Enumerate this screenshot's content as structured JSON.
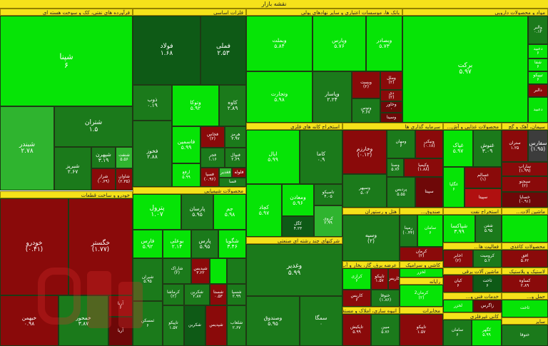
{
  "title": "نقشه بازار",
  "colors": {
    "header": "#f5e21a",
    "bright_green": "#06e406",
    "green": "#2fb42f",
    "dark_green": "#1b7a1b",
    "dark_red": "#8a0a0a"
  },
  "sectors": [
    {
      "key": "faravarde",
      "label": "فرآورده های نفتی، کک و سوخت هسته ای"
    },
    {
      "key": "felezat",
      "label": "فلزات اساسی"
    },
    {
      "key": "bank",
      "label": "بانک ها، موسسات اعتباری و سایر نهادهای پولی"
    },
    {
      "key": "daru",
      "label": "مواد و محصولات دارویی"
    },
    {
      "key": "madan",
      "label": "استخراج کانه های فلزی"
    },
    {
      "key": "sarmaye",
      "label": "سرمایه گذاری ها"
    },
    {
      "key": "ghazaei",
      "label": "محصولات غذایی و آش..."
    },
    {
      "key": "siman",
      "label": "سیمان، آهک و گچ"
    },
    {
      "key": "khodro",
      "label": "خودرو و ساخت قطعات"
    },
    {
      "key": "shimiaei",
      "label": "محصولات شیمیایی"
    },
    {
      "key": "chandreshte",
      "label": "شرکتهای چند رشته ای صنعتی"
    },
    {
      "key": "hotel",
      "label": "هتل و رستوران"
    },
    {
      "key": "sandogh",
      "label": "صندوق..."
    },
    {
      "key": "naft",
      "label": "استخراج نفت"
    },
    {
      "key": "mashin",
      "label": "ماشین آلات..."
    },
    {
      "key": "kashi",
      "label": "کاشی و سرامیک"
    },
    {
      "key": "fani",
      "label": "فعالیت ها..."
    },
    {
      "key": "kaghaz",
      "label": "محصولات کاغذی"
    },
    {
      "key": "barq",
      "label": "ماشین آلات برقی"
    },
    {
      "key": "lastik",
      "label": "لاستیک و پلاستیک"
    },
    {
      "key": "rayane",
      "label": "رایانه"
    },
    {
      "key": "melk",
      "انبوه سازی": "",
      "label": "انبوه سازی، املاک و مستغلات"
    },
    {
      "key": "fani2",
      "label": "خدمات فنی و..."
    },
    {
      "key": "gaz",
      "label": "عرضه برق، گاز، بخار و آب"
    },
    {
      "key": "mokhaberat",
      "label": "مخابرات"
    },
    {
      "key": "hamlonaql",
      "label": "حمل و..."
    },
    {
      "key": "kani",
      "label": "کانی غیرفلزی"
    },
    {
      "key": "chandreshte2",
      "label": "خرده..."
    },
    {
      "key": "misc",
      "label": "سایر"
    }
  ],
  "tiles": [
    {
      "name": "شپنا",
      "change": "۶"
    },
    {
      "name": "شبندر",
      "change": "۲.۷۸"
    },
    {
      "name": "شتران",
      "change": "۱.۵"
    },
    {
      "name": "شبریز",
      "change": "۲.۶۷"
    },
    {
      "name": "شپهرن",
      "change": "۳.۱۹"
    },
    {
      "name": "شنفت",
      "change": "۵.۵۶"
    },
    {
      "name": "شراز",
      "change": "(۰.۶۹)"
    },
    {
      "name": "شاوان",
      "change": "(۲.۳۵)"
    },
    {
      "name": "فولاد",
      "change": "۱.۶۸"
    },
    {
      "name": "فملی",
      "change": "۲.۵۳"
    },
    {
      "name": "ذوب",
      "change": "۰.۱۹"
    },
    {
      "name": "وتوکا",
      "change": "۵.۹۲"
    },
    {
      "name": "کاوه",
      "change": "۲.۸۹"
    },
    {
      "name": "فخوز",
      "change": "۲.۸۸"
    },
    {
      "name": "فاسمین",
      "change": "۵.۹۹"
    },
    {
      "name": "فخاس",
      "change": "(۲)"
    },
    {
      "name": "هرمز",
      "change": "۳.۹۷"
    },
    {
      "name": "ارفع",
      "change": "۵.۹۹"
    },
    {
      "name": "فجر",
      "change": "۱.۱۶"
    },
    {
      "name": "فنوال",
      "change": "۲.۶۹"
    },
    {
      "name": "فسپا",
      "change": "(۰.۹۶)"
    },
    {
      "name": "فغدیر",
      "change": "۵.۳۹"
    },
    {
      "name": "فلوله",
      "change": "(۲.۰۸)"
    },
    {
      "name": "فسا",
      "change": "۲.۰۵"
    },
    {
      "name": "وبملت",
      "change": "۵.۸۴"
    },
    {
      "name": "وپارس",
      "change": "۵.۷۶"
    },
    {
      "name": "وبصادر",
      "change": "۵.۷۳"
    },
    {
      "name": "وتجارت",
      "change": "۵.۹۸"
    },
    {
      "name": "وپاسار",
      "change": "۲.۲۴"
    },
    {
      "name": "وبست",
      "change": "(۲)"
    },
    {
      "name": "وملل",
      "change": "(۲)"
    },
    {
      "name": "وتوس",
      "change": "۳.۶۷"
    },
    {
      "name": "دی",
      "change": "(۲)"
    },
    {
      "name": "وخاور",
      "change": "۰"
    },
    {
      "name": "وسینا",
      "change": "۰"
    },
    {
      "name": "برکت",
      "change": "۵.۹۷"
    },
    {
      "name": "والبر",
      "change": "۰.۱۲"
    },
    {
      "name": "دعبید",
      "change": "۶"
    },
    {
      "name": "شفا",
      "change": "۶"
    },
    {
      "name": "تیپیکو",
      "change": "۶"
    },
    {
      "name": "دالبر",
      "change": "۶"
    },
    {
      "name": "فارس",
      "change": "۵.۹۲"
    },
    {
      "name": "ایال",
      "change": "۵.۹۹"
    },
    {
      "name": "کاما",
      "change": "۰.۹"
    },
    {
      "name": "کچاد",
      "change": "۵.۹۷"
    },
    {
      "name": "ومعادن",
      "change": "۵.۹۶"
    },
    {
      "name": "تاصیکو",
      "change": "۴.۰۵"
    },
    {
      "name": "کگل",
      "change": "۴.۲۳"
    },
    {
      "name": "کروی",
      "change": "۲.۹۹"
    },
    {
      "name": "وخارزم",
      "change": "(۰.۱۲)"
    },
    {
      "name": "ومهان",
      "change": "۶"
    },
    {
      "name": "ونیکی",
      "change": "(۰.۱۸)"
    },
    {
      "name": "وکیمیا",
      "change": "(۱.۸۸)"
    },
    {
      "name": "وصنا",
      "change": "۵.۷۶"
    },
    {
      "name": "وسپهر",
      "change": "۵.۰۲"
    },
    {
      "name": "پردیس",
      "change": "۵.۵۵"
    },
    {
      "name": "غپاک",
      "change": "۵.۹۷"
    },
    {
      "name": "غنوش",
      "change": "۳.۰۹"
    },
    {
      "name": "غگلپا",
      "change": "۶"
    },
    {
      "name": "غسالم",
      "change": "(۱)"
    },
    {
      "name": "سپیتا",
      "change": "۶"
    },
    {
      "name": "سفارس",
      "change": "(۱.۹۵)"
    },
    {
      "name": "ستران",
      "change": "۱.۲۵"
    },
    {
      "name": "ساراب",
      "change": "(۱.۹۹)"
    },
    {
      "name": "سبجنو",
      "change": "(۲)"
    },
    {
      "name": "خساپا",
      "change": "(۰.۹۱)"
    },
    {
      "name": "خودرو",
      "change": "(۰.۴۱)"
    },
    {
      "name": "خگستر",
      "change": "(۱.۷۷)"
    },
    {
      "name": "خبهمن",
      "change": "۰.۹۸"
    },
    {
      "name": "خمحور",
      "change": "۳.۸۷"
    },
    {
      "name": "آریا",
      "change": "۶"
    },
    {
      "name": "پترول",
      "change": "۱.۰۷"
    },
    {
      "name": "پارسان",
      "change": "۵.۹۵"
    },
    {
      "name": "جم",
      "change": "۵.۹۸"
    },
    {
      "name": "بوعلی",
      "change": "۲.۱۴"
    },
    {
      "name": "پارس",
      "change": "۵.۹۵"
    },
    {
      "name": "شگویا",
      "change": "۳.۴۶"
    },
    {
      "name": "شاراک",
      "change": "(۲)"
    },
    {
      "name": "شپدیس",
      "change": "۳.۲۲"
    },
    {
      "name": "شیران",
      "change": "۵.۹۵"
    },
    {
      "name": "کرماشا",
      "change": "(۲)"
    },
    {
      "name": "شکربن",
      "change": "۲.۸۷"
    },
    {
      "name": "شسپا",
      "change": "۲.۹۹"
    },
    {
      "name": "شلعاب",
      "change": "۲.۶۷"
    },
    {
      "name": "شستا",
      "change": "۰.۵۳"
    },
    {
      "name": "وغدیر",
      "change": "۵.۹۹"
    },
    {
      "name": "وصندوق",
      "change": "۵.۹۵"
    },
    {
      "name": "سمگا",
      "change": "۰"
    },
    {
      "name": "وسپه",
      "change": "(۲)"
    },
    {
      "name": "کرمان",
      "change": "(۲)"
    },
    {
      "name": "تاپکیش",
      "change": "۵.۹۹"
    },
    {
      "name": "رمپنا",
      "change": "(۰.۴۴)"
    },
    {
      "name": "تاپیکو",
      "change": "۱.۵۷"
    },
    {
      "name": "مبین",
      "change": "۵.۷۶"
    },
    {
      "name": "کرازی",
      "change": "۶"
    },
    {
      "name": "کرمان2",
      "change": "(۲)"
    },
    {
      "name": "کاریس",
      "change": "۶"
    },
    {
      "name": "ختوقا",
      "change": "(۱.۸۶)"
    },
    {
      "name": "اخابر",
      "change": "(۲)"
    },
    {
      "name": "افق",
      "change": "۵.۶۲"
    },
    {
      "name": "کیان",
      "change": "۶"
    },
    {
      "name": "سامان",
      "change": "۶"
    },
    {
      "name": "ثمسکن",
      "change": "۶"
    },
    {
      "name": "کرومیت",
      "change": "۵.۲"
    },
    {
      "name": "ثاخت",
      "change": "۶"
    },
    {
      "name": "کگهر",
      "change": "۵.۹۹"
    },
    {
      "name": "لخزر",
      "change": "(۲)"
    },
    {
      "name": "کساوه",
      "change": "۲.۸۹"
    },
    {
      "name": "زاگرس",
      "change": "۵.۸۹"
    },
    {
      "name": "شفن",
      "change": "۵.۹۵"
    },
    {
      "name": "شپاکسا",
      "change": "۳.۹۹"
    }
  ]
}
